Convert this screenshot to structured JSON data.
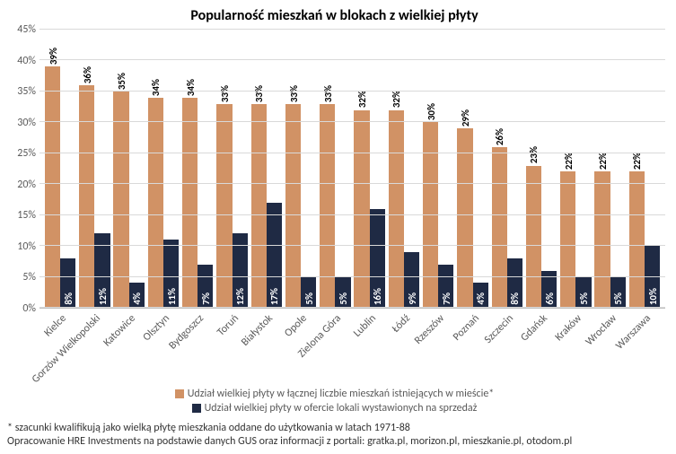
{
  "chart": {
    "type": "bar",
    "title": "Popularność mieszkań w blokach z wielkiej płyty",
    "title_fontsize": 16,
    "categories": [
      "Kielce",
      "Gorzów Wielkopolski",
      "Katowice",
      "Olsztyn",
      "Bydgoszcz",
      "Toruń",
      "Białystok",
      "Opole",
      "Zielona Góra",
      "Lublin",
      "Łódź",
      "Rzeszów",
      "Poznań",
      "Szczecin",
      "Gdańsk",
      "Kraków",
      "Wrocław",
      "Warszawa"
    ],
    "series": [
      {
        "name": "Udział wielkiej płyty w łącznej liczbie mieszkań istniejących w mieście*",
        "color": "#d19265",
        "values": [
          39,
          36,
          35,
          34,
          34,
          33,
          33,
          33,
          33,
          32,
          32,
          30,
          29,
          26,
          23,
          22,
          22,
          22
        ],
        "label_position": "above",
        "label_color": "#000000"
      },
      {
        "name": "Udział wielkiej płyty w ofercie lokali wystawionych na sprzedaż",
        "color": "#1f2a44",
        "values": [
          8,
          12,
          4,
          11,
          7,
          12,
          17,
          5,
          5,
          16,
          9,
          7,
          4,
          8,
          6,
          5,
          5,
          10
        ],
        "label_position": "inside",
        "label_color": "#ffffff"
      }
    ],
    "ylim": [
      0,
      45
    ],
    "ytick_step": 5,
    "y_tick_format": "percent",
    "label_fontsize": 12,
    "bar_label_fontsize": 11,
    "background_color": "#ffffff",
    "grid_color": "#d9d9d9",
    "axis_color": "#bfbfbf",
    "tick_color": "#595959"
  },
  "legend": {
    "items": [
      {
        "color": "#d19265",
        "text": "Udział wielkiej płyty w łącznej liczbie mieszkań istniejących w mieście*"
      },
      {
        "color": "#1f2a44",
        "text": "Udział wielkiej płyty w ofercie lokali wystawionych na sprzedaż"
      }
    ]
  },
  "footnote": {
    "line1": "* szacunki kwalifikują jako wielką płytę mieszkania oddane do użytkowania w latach 1971-88",
    "line2": "Opracowanie HRE Investments na podstawie danych GUS oraz informacji z portali: gratka.pl, morizon.pl, mieszkanie.pl, otodom.pl"
  }
}
